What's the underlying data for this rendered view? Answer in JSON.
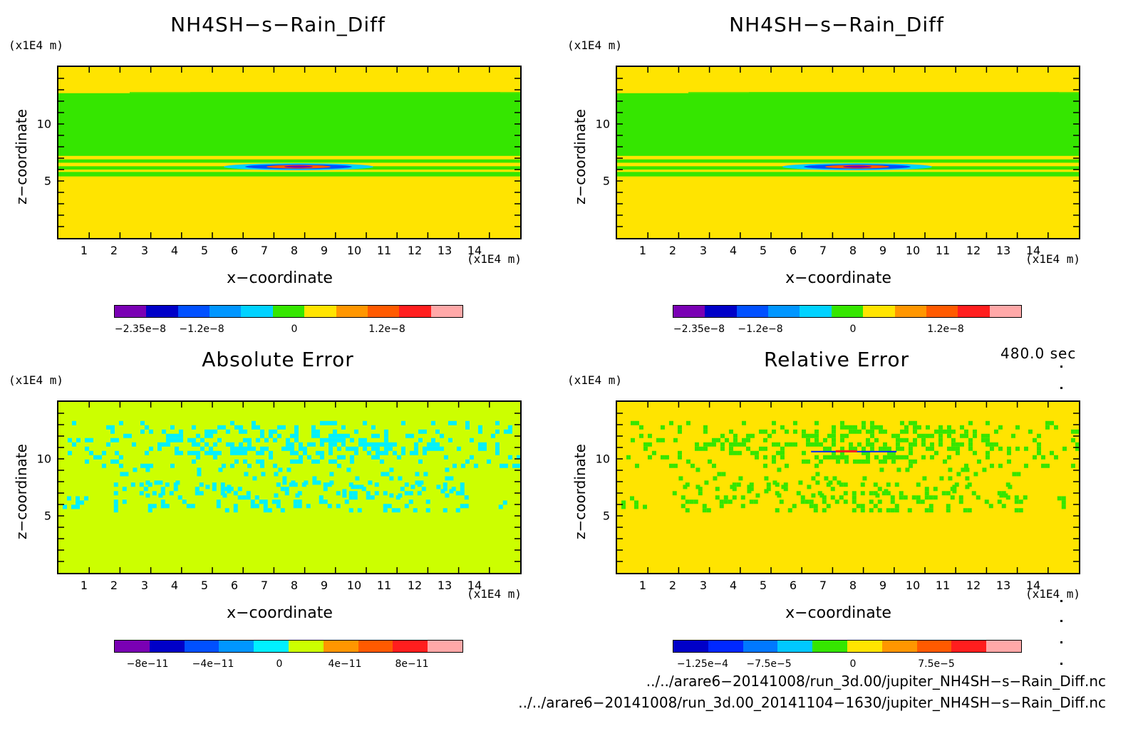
{
  "chart_data": [
    {
      "type": "heatmap",
      "title": "NH4SH−s−Rain_Diff",
      "xlabel": "x−coordinate",
      "ylabel": "z−coordinate",
      "x_unit": "(x1E4 m)",
      "y_unit": "(x1E4 m)",
      "xlim": [
        0,
        15
      ],
      "ylim": [
        0,
        15
      ],
      "xticks": [
        "1",
        "2",
        "3",
        "4",
        "5",
        "6",
        "7",
        "8",
        "9",
        "10",
        "11",
        "12",
        "13",
        "14"
      ],
      "yticks": [
        "5",
        "10"
      ],
      "colorbar": {
        "colors": [
          "#7a00b4",
          "#0000c8",
          "#0050ff",
          "#0096ff",
          "#00d2ff",
          "#35e600",
          "#ffe400",
          "#ff9600",
          "#ff5a00",
          "#ff1e1e",
          "#ffa8a8"
        ],
        "tick_labels": [
          "−2.35e−8",
          "−1.2e−8",
          "0",
          "1.2e−8"
        ]
      },
      "background_color": "#ffe400",
      "bands": [
        {
          "z_from": 5.4,
          "z_to": 5.8,
          "color": "#35e600"
        },
        {
          "z_from": 5.8,
          "z_to": 6.0,
          "color": "#ffe400"
        },
        {
          "z_from": 6.0,
          "z_to": 6.3,
          "color": "#35e600"
        },
        {
          "z_from": 6.3,
          "z_to": 6.6,
          "color": "#ffe400"
        },
        {
          "z_from": 6.6,
          "z_to": 6.9,
          "color": "#35e600"
        },
        {
          "z_from": 6.9,
          "z_to": 7.2,
          "color": "#ffe400"
        },
        {
          "z_from": 7.2,
          "z_to": 12.7,
          "color": "#35e600"
        }
      ]
    },
    {
      "type": "heatmap",
      "title": "NH4SH−s−Rain_Diff",
      "xlabel": "x−coordinate",
      "ylabel": "z−coordinate",
      "x_unit": "(x1E4 m)",
      "y_unit": "(x1E4 m)",
      "xlim": [
        0,
        15
      ],
      "ylim": [
        0,
        15
      ],
      "xticks": [
        "1",
        "2",
        "3",
        "4",
        "5",
        "6",
        "7",
        "8",
        "9",
        "10",
        "11",
        "12",
        "13",
        "14"
      ],
      "yticks": [
        "5",
        "10"
      ],
      "colorbar": {
        "colors": [
          "#7a00b4",
          "#0000c8",
          "#0050ff",
          "#0096ff",
          "#00d2ff",
          "#35e600",
          "#ffe400",
          "#ff9600",
          "#ff5a00",
          "#ff1e1e",
          "#ffa8a8"
        ],
        "tick_labels": [
          "−2.35e−8",
          "−1.2e−8",
          "0",
          "1.2e−8"
        ]
      },
      "background_color": "#ffe400",
      "bands": [
        {
          "z_from": 5.4,
          "z_to": 5.8,
          "color": "#35e600"
        },
        {
          "z_from": 5.8,
          "z_to": 6.0,
          "color": "#ffe400"
        },
        {
          "z_from": 6.0,
          "z_to": 6.3,
          "color": "#35e600"
        },
        {
          "z_from": 6.3,
          "z_to": 6.6,
          "color": "#ffe400"
        },
        {
          "z_from": 6.6,
          "z_to": 6.9,
          "color": "#35e600"
        },
        {
          "z_from": 6.9,
          "z_to": 7.2,
          "color": "#ffe400"
        },
        {
          "z_from": 7.2,
          "z_to": 12.7,
          "color": "#35e600"
        }
      ]
    },
    {
      "type": "heatmap",
      "title": "Absolute Error",
      "xlabel": "x−coordinate",
      "ylabel": "z−coordinate",
      "x_unit": "(x1E4 m)",
      "y_unit": "(x1E4 m)",
      "xlim": [
        0,
        15
      ],
      "ylim": [
        0,
        15
      ],
      "xticks": [
        "1",
        "2",
        "3",
        "4",
        "5",
        "6",
        "7",
        "8",
        "9",
        "10",
        "11",
        "12",
        "13",
        "14"
      ],
      "yticks": [
        "5",
        "10"
      ],
      "colorbar": {
        "colors": [
          "#7a00b4",
          "#0000c8",
          "#0050ff",
          "#0096ff",
          "#00f0ff",
          "#ccff00",
          "#ff9600",
          "#ff5a00",
          "#ff1e1e",
          "#ffa8a8"
        ],
        "tick_labels": [
          "−8e−11",
          "−4e−11",
          "0",
          "4e−11",
          "8e−11"
        ]
      },
      "background_color": "#ccff00",
      "noise_color": "#00f0ff"
    },
    {
      "type": "heatmap",
      "title": "Relative Error",
      "xlabel": "x−coordinate",
      "ylabel": "z−coordinate",
      "x_unit": "(x1E4 m)",
      "y_unit": "(x1E4 m)",
      "xlim": [
        0,
        15
      ],
      "ylim": [
        0,
        15
      ],
      "xticks": [
        "1",
        "2",
        "3",
        "4",
        "5",
        "6",
        "7",
        "8",
        "9",
        "10",
        "11",
        "12",
        "13",
        "14"
      ],
      "yticks": [
        "5",
        "10"
      ],
      "colorbar": {
        "colors": [
          "#0000c8",
          "#0028ff",
          "#0078ff",
          "#00c8ff",
          "#35e600",
          "#ffe400",
          "#ff9600",
          "#ff5a00",
          "#ff1e1e",
          "#ffa8a8"
        ],
        "tick_labels": [
          "−1.25e−4",
          "−7.5e−5",
          "0",
          "7.5e−5"
        ]
      },
      "background_color": "#ffe400",
      "noise_color": "#35e600"
    }
  ],
  "timestamp": "480.0 sec",
  "file_paths": [
    "../../arare6−20141008/run_3d.00/jupiter_NH4SH−s−Rain_Diff.nc",
    "../../arare6−20141008/run_3d.00_20141104−1630/jupiter_NH4SH−s−Rain_Diff.nc"
  ]
}
